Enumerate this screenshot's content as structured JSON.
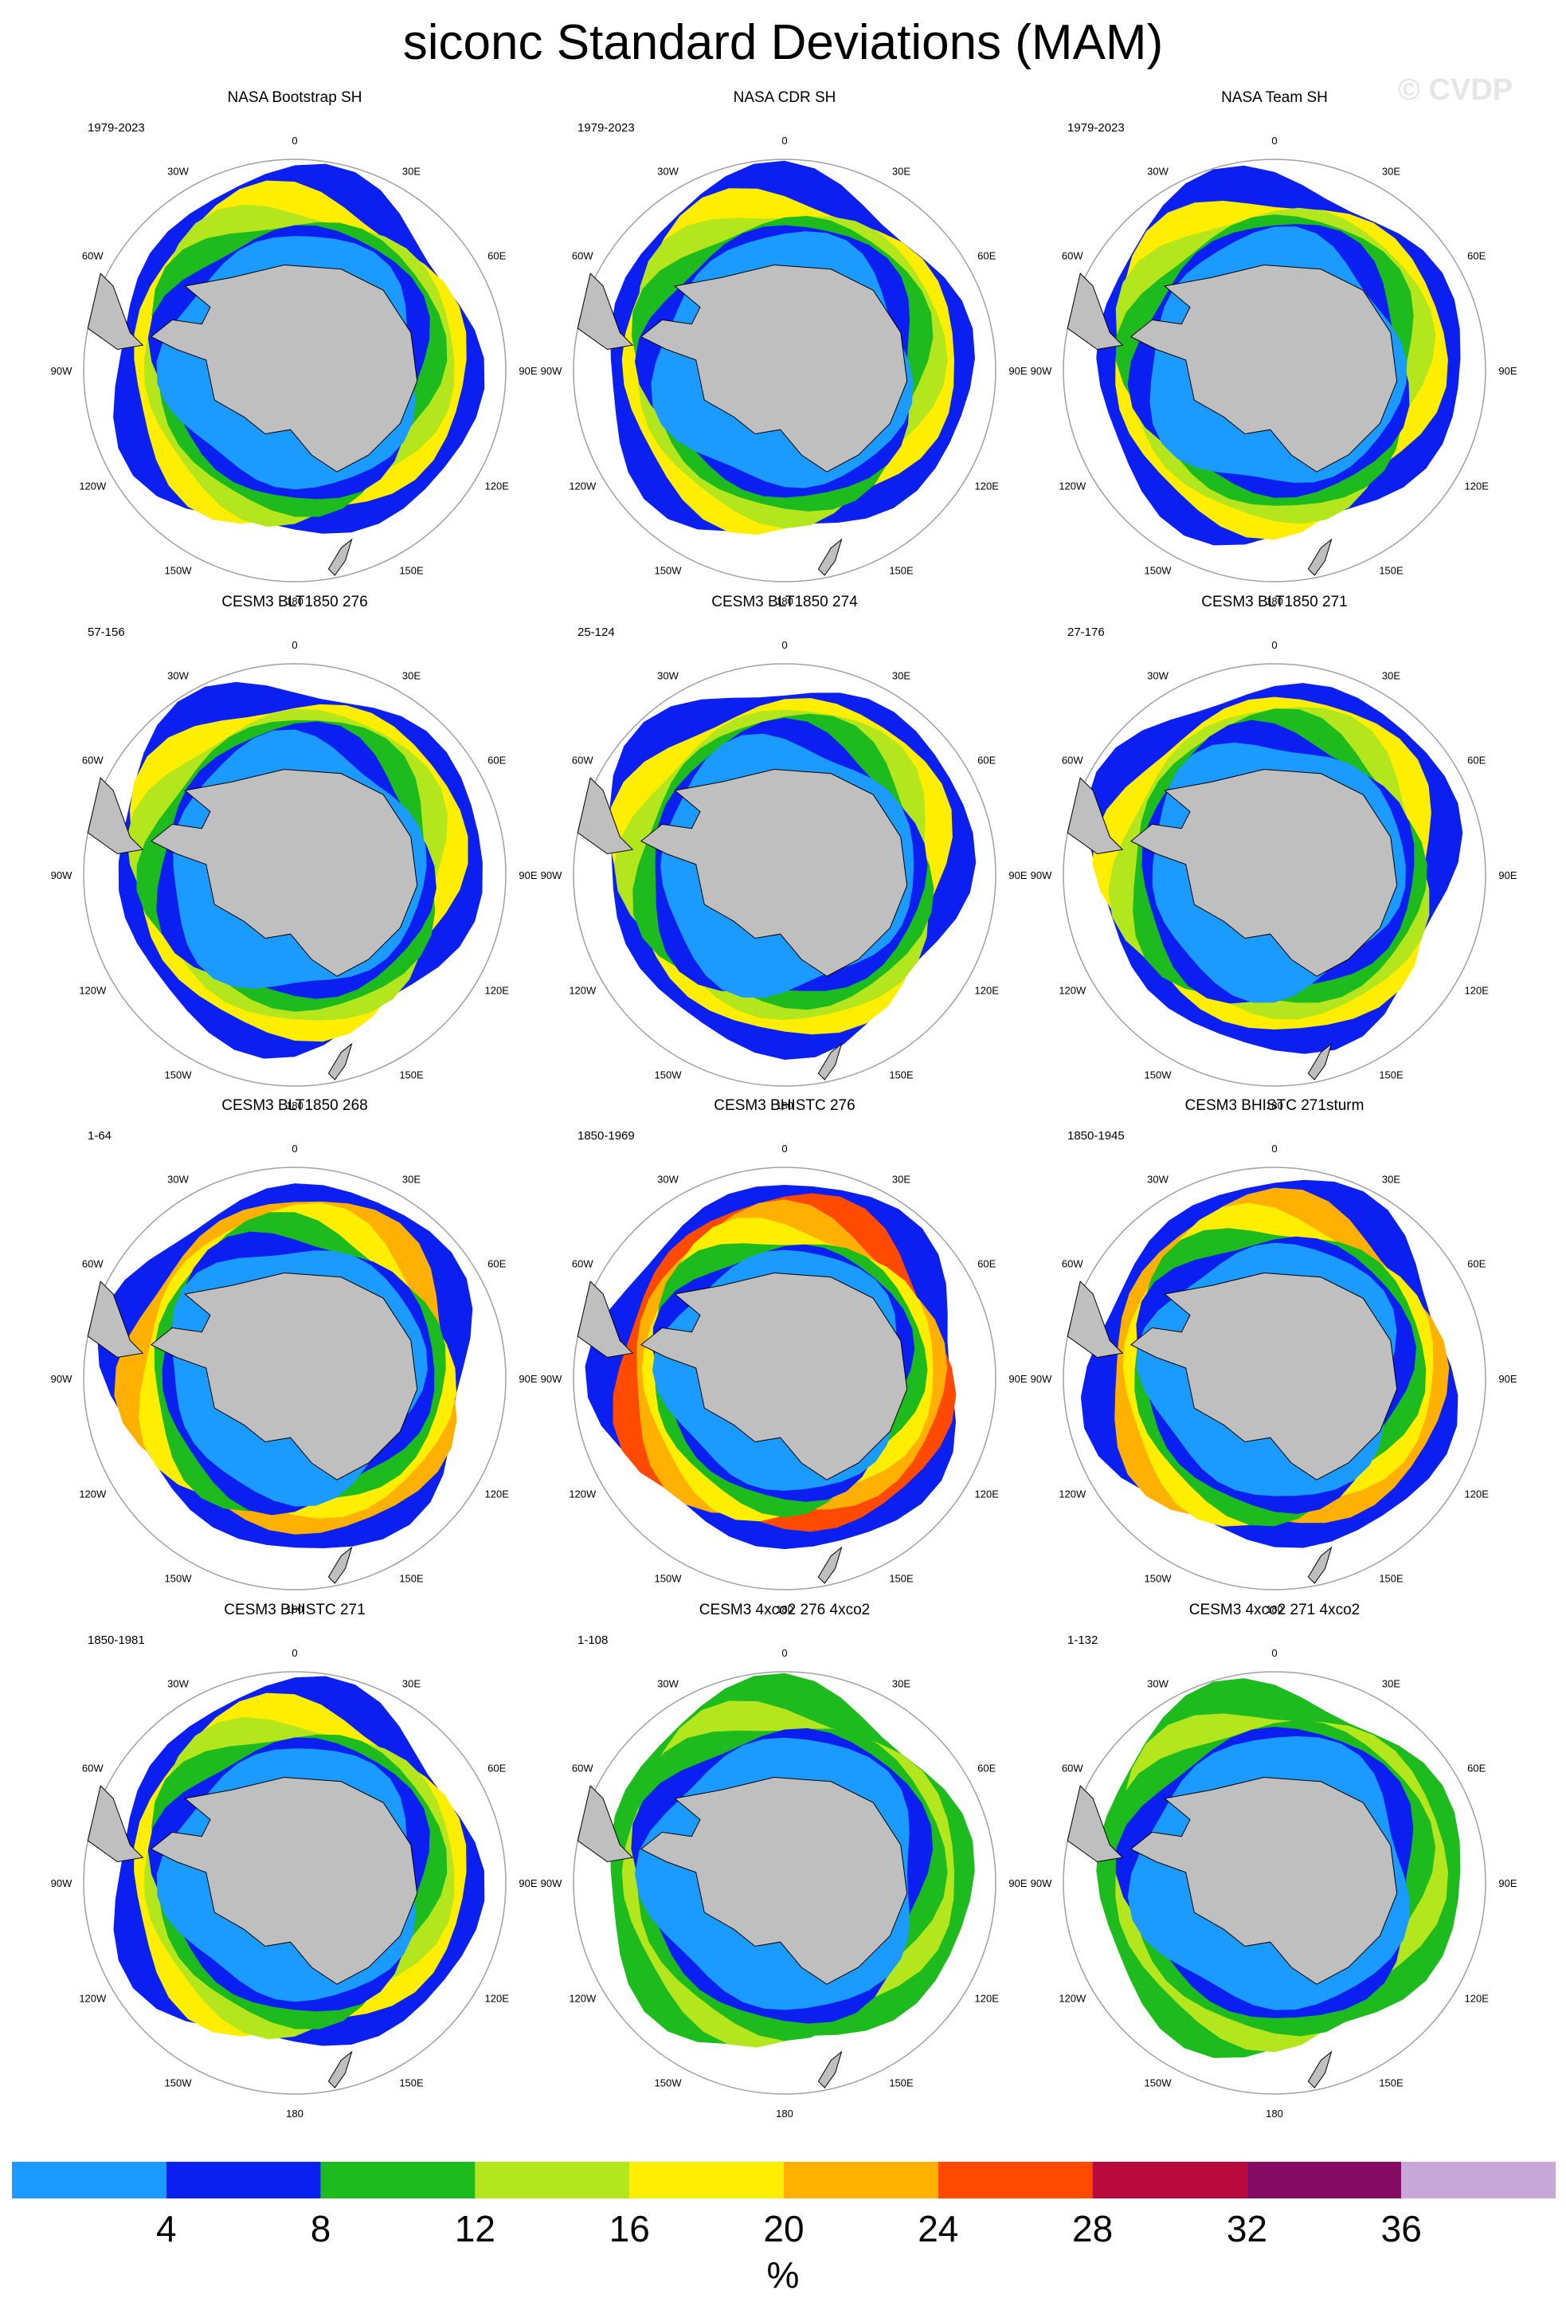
{
  "title": "siconc Standard Deviations (MAM)",
  "watermark": "© CVDP",
  "colors": {
    "ocean": "#ffffff",
    "land": "#bfbfbf",
    "rim": "#a0a0a0",
    "levels": [
      "#1b9aff",
      "#0a1ff0",
      "#1dbb1d",
      "#b4e61e",
      "#ffee00",
      "#ffb000",
      "#ff4a00",
      "#b80a3c",
      "#840a64",
      "#c8a8d8"
    ]
  },
  "lon_labels": [
    "0",
    "30E",
    "60E",
    "90E",
    "120E",
    "150E",
    "180",
    "150W",
    "120W",
    "90W",
    "60W",
    "30W"
  ],
  "panels": [
    {
      "title": "NASA Bootstrap SH",
      "period": "1979-2023",
      "ice": [
        1,
        4,
        3,
        2,
        1,
        0
      ]
    },
    {
      "title": "NASA CDR SH",
      "period": "1979-2023",
      "ice": [
        1,
        4,
        3,
        2,
        1,
        0
      ]
    },
    {
      "title": "NASA Team SH",
      "period": "1979-2023",
      "ice": [
        1,
        4,
        3,
        2,
        1,
        0
      ]
    },
    {
      "title": "CESM3 BLT1850 276",
      "period": "57-156",
      "ice": [
        1,
        4,
        3,
        2,
        1,
        0
      ]
    },
    {
      "title": "CESM3 BLT1850 274",
      "period": "25-124",
      "ice": [
        1,
        4,
        3,
        2,
        1,
        0
      ]
    },
    {
      "title": "CESM3 BLT1850 271",
      "period": "27-176",
      "ice": [
        1,
        4,
        3,
        2,
        1,
        0
      ]
    },
    {
      "title": "CESM3 BLT1850 268",
      "period": "1-64",
      "ice": [
        1,
        5,
        4,
        2,
        1,
        0
      ]
    },
    {
      "title": "CESM3 BHISTC 276",
      "period": "1850-1969",
      "ice": [
        1,
        6,
        5,
        4,
        2,
        1,
        0
      ]
    },
    {
      "title": "CESM3 BHISTC 271sturm",
      "period": "1850-1945",
      "ice": [
        1,
        5,
        4,
        2,
        1,
        0
      ]
    },
    {
      "title": "CESM3 BHISTC 271",
      "period": "1850-1981",
      "ice": [
        1,
        4,
        3,
        2,
        1,
        0
      ]
    },
    {
      "title": "CESM3 4xco2 276 4xco2",
      "period": "1-108",
      "ice": [
        2,
        3,
        2,
        1,
        0
      ]
    },
    {
      "title": "CESM3 4xco2 271 4xco2",
      "period": "1-132",
      "ice": [
        2,
        3,
        2,
        1,
        0
      ]
    }
  ],
  "colorbar": {
    "labels": [
      "4",
      "8",
      "12",
      "16",
      "20",
      "24",
      "28",
      "32",
      "36"
    ],
    "units": "%"
  }
}
